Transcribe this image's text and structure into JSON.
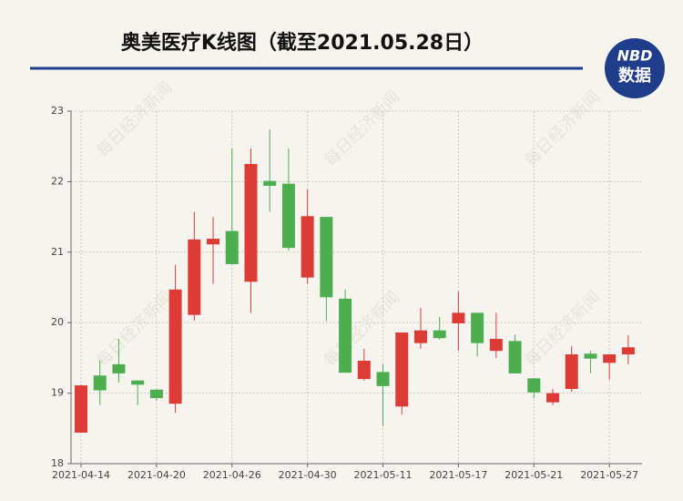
{
  "chart_data": {
    "type": "candlestick",
    "title": "奥美医疗K线图（截至2021.05.28日）",
    "logo": {
      "brand": "NBD",
      "label": "数据"
    },
    "watermark": "每日经济新闻",
    "categories": [
      "2021-04-14",
      null,
      null,
      null,
      "2021-04-20",
      null,
      null,
      null,
      "2021-04-26",
      null,
      null,
      null,
      "2021-04-30",
      null,
      null,
      null,
      "2021-05-11",
      null,
      null,
      null,
      "2021-05-17",
      null,
      null,
      null,
      "2021-05-21",
      null,
      null,
      null,
      "2021-05-27",
      null
    ],
    "open": [
      18.44,
      19.25,
      19.41,
      19.18,
      19.05,
      18.85,
      20.11,
      21.11,
      21.3,
      20.58,
      22.01,
      21.97,
      20.64,
      21.5,
      20.34,
      19.2,
      19.3,
      18.81,
      19.71,
      19.89,
      19.99,
      20.14,
      19.6,
      19.74,
      19.21,
      18.87,
      19.06,
      19.56,
      19.43,
      19.55
    ],
    "high": [
      19.12,
      19.47,
      19.77,
      19.18,
      19.05,
      20.82,
      21.57,
      21.5,
      22.47,
      22.47,
      22.74,
      22.47,
      21.89,
      21.5,
      20.47,
      19.63,
      19.41,
      19.86,
      20.21,
      20.08,
      20.44,
      20.14,
      20.14,
      19.83,
      19.21,
      19.06,
      19.67,
      19.6,
      19.55,
      19.82
    ],
    "low": [
      18.44,
      18.83,
      19.15,
      18.83,
      18.89,
      18.72,
      20.03,
      20.55,
      20.83,
      20.14,
      21.57,
      21.02,
      20.55,
      20.02,
      19.29,
      19.18,
      18.53,
      18.7,
      19.63,
      19.76,
      19.6,
      19.52,
      19.5,
      19.28,
      18.93,
      18.83,
      19.02,
      19.28,
      19.19,
      19.41
    ],
    "close": [
      19.11,
      19.04,
      19.28,
      19.12,
      18.93,
      20.47,
      21.18,
      21.19,
      20.83,
      22.25,
      21.94,
      21.06,
      21.51,
      20.36,
      19.29,
      19.46,
      19.1,
      19.86,
      19.89,
      19.78,
      20.14,
      19.71,
      19.77,
      19.28,
      19.01,
      19.0,
      19.55,
      19.49,
      19.55,
      19.65
    ],
    "up_color": "#dc3b36",
    "down_color": "#4cae4f",
    "ylim": [
      18,
      23
    ],
    "yticks": [
      18,
      19,
      20,
      21,
      22,
      23
    ],
    "grid": true
  }
}
